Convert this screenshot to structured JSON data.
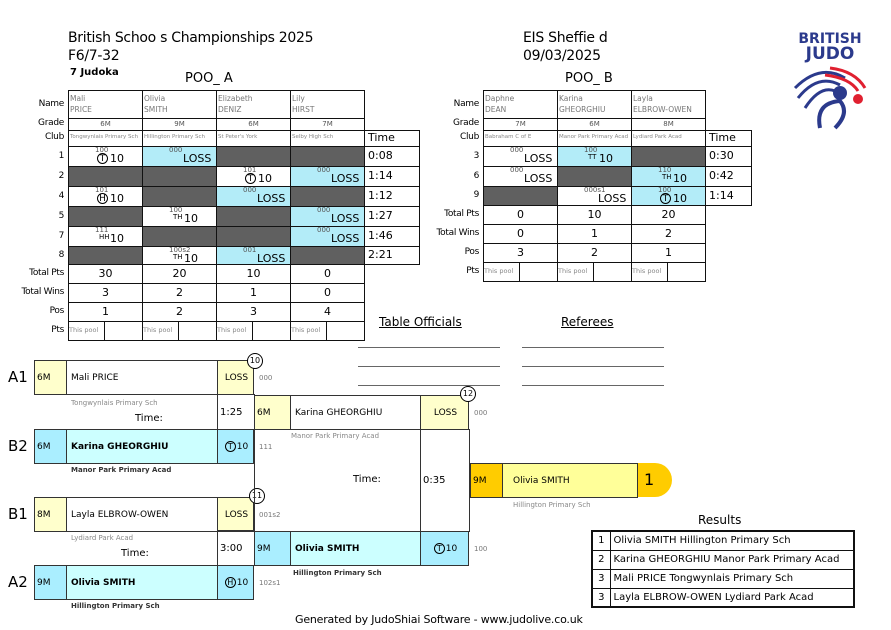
{
  "header": {
    "title": "British Schoo s Championships 2025",
    "category": "F6/7-32",
    "count": "7 Judoka",
    "venue": "EIS Sheffie d",
    "date": "09/03/2025",
    "logo_text": "BRITISH JUDO"
  },
  "row_labels": {
    "name": "Name",
    "grade": "Grade",
    "club": "Club",
    "time": "Time",
    "total_pts": "Total Pts",
    "total_wins": "Total Wins",
    "pos": "Pos",
    "pts": "Pts",
    "this_pool": "This pool"
  },
  "pool_a": {
    "title": "POO_ A",
    "players": [
      {
        "first": "Mali",
        "last": "PRICE",
        "grade": "6M",
        "club": "Tongwynlais Primary Sch",
        "total_pts": "30",
        "total_wins": "3",
        "pos": "1"
      },
      {
        "first": "Olivia",
        "last": "SMITH",
        "grade": "9M",
        "club": "Hillington Primary Sch",
        "total_pts": "20",
        "total_wins": "2",
        "pos": "2"
      },
      {
        "first": "Elizabeth",
        "last": "DENIZ",
        "grade": "6M",
        "club": "St Peter's York",
        "total_pts": "10",
        "total_wins": "1",
        "pos": "3"
      },
      {
        "first": "Lily",
        "last": "HIRST",
        "grade": "7M",
        "club": "Selby High Sch",
        "total_pts": "0",
        "total_wins": "0",
        "pos": "4"
      }
    ],
    "matches": [
      {
        "no": "1",
        "time": "0:08",
        "cells": [
          {
            "s": "w",
            "score": "100",
            "icon": "T",
            "result": "10"
          },
          {
            "s": "b",
            "score": "000",
            "result": "LOSS"
          },
          {
            "s": "d"
          },
          {
            "s": "d"
          }
        ]
      },
      {
        "no": "2",
        "time": "1:14",
        "cells": [
          {
            "s": "d"
          },
          {
            "s": "d"
          },
          {
            "s": "w",
            "score": "101",
            "icon": "T",
            "result": "10"
          },
          {
            "s": "b",
            "score": "000",
            "result": "LOSS"
          }
        ]
      },
      {
        "no": "4",
        "time": "1:12",
        "cells": [
          {
            "s": "w",
            "score": "101",
            "icon": "H",
            "result": "10"
          },
          {
            "s": "d"
          },
          {
            "s": "b",
            "score": "000",
            "result": "LOSS"
          },
          {
            "s": "d"
          }
        ]
      },
      {
        "no": "5",
        "time": "1:27",
        "cells": [
          {
            "s": "d"
          },
          {
            "s": "w",
            "score": "100",
            "icon": "TH",
            "result": "10"
          },
          {
            "s": "d"
          },
          {
            "s": "b",
            "score": "000",
            "result": "LOSS"
          }
        ]
      },
      {
        "no": "7",
        "time": "1:46",
        "cells": [
          {
            "s": "w",
            "score": "111",
            "icon": "HH",
            "result": "10"
          },
          {
            "s": "d"
          },
          {
            "s": "d"
          },
          {
            "s": "b",
            "score": "000",
            "result": "LOSS"
          }
        ]
      },
      {
        "no": "8",
        "time": "2:21",
        "cells": [
          {
            "s": "d"
          },
          {
            "s": "w",
            "score": "100s2",
            "icon": "TH",
            "result": "10"
          },
          {
            "s": "b",
            "score": "001",
            "result": "LOSS"
          },
          {
            "s": "d"
          }
        ]
      }
    ]
  },
  "pool_b": {
    "title": "POO_ B",
    "players": [
      {
        "first": "Daphne",
        "last": "DEAN",
        "grade": "7M",
        "club": "Babraham C of E",
        "total_pts": "0",
        "total_wins": "0",
        "pos": "3"
      },
      {
        "first": "Karina",
        "last": "GHEORGHIU",
        "grade": "6M",
        "club": "Manor Park Primary Acad",
        "total_pts": "10",
        "total_wins": "1",
        "pos": "2"
      },
      {
        "first": "Layla",
        "last": "ELBROW-OWEN",
        "grade": "8M",
        "club": "Lydiard Park Acad",
        "total_pts": "20",
        "total_wins": "2",
        "pos": "1"
      }
    ],
    "matches": [
      {
        "no": "3",
        "time": "0:30",
        "cells": [
          {
            "s": "w",
            "score": "000",
            "result": "LOSS"
          },
          {
            "s": "b",
            "score": "100",
            "icon": "TT",
            "result": "10"
          },
          {
            "s": "d"
          }
        ]
      },
      {
        "no": "6",
        "time": "0:42",
        "cells": [
          {
            "s": "w",
            "score": "000",
            "result": "LOSS"
          },
          {
            "s": "d"
          },
          {
            "s": "b",
            "score": "110",
            "icon": "TH",
            "result": "10"
          }
        ]
      },
      {
        "no": "9",
        "time": "1:14",
        "cells": [
          {
            "s": "d"
          },
          {
            "s": "w",
            "score": "000s1",
            "result": "LOSS"
          },
          {
            "s": "b",
            "score": "100",
            "icon": "T",
            "result": "10"
          }
        ]
      }
    ]
  },
  "officials": {
    "table": "Table Officials",
    "referees": "Referees"
  },
  "bracket": {
    "time_label": "Time:",
    "m10": {
      "no": "10",
      "time": "1:25",
      "top": {
        "seed": "A1",
        "grade": "6M",
        "name": "Mali PRICE",
        "club": "Tongwynlais Primary Sch",
        "result": "LOSS",
        "score": "000"
      },
      "bottom": {
        "seed": "B2",
        "grade": "6M",
        "name": "Karina GHEORGHIU",
        "club": "Manor Park Primary Acad",
        "icon": "T",
        "result": "10",
        "score": "111"
      }
    },
    "m11": {
      "no": "11",
      "time": "3:00",
      "top": {
        "seed": "B1",
        "grade": "8M",
        "name": "Layla ELBROW-OWEN",
        "club": "Lydiard Park Acad",
        "result": "LOSS",
        "score": "001s2"
      },
      "bottom": {
        "seed": "A2",
        "grade": "9M",
        "name": "Olivia SMITH",
        "club": "Hillington Primary Sch",
        "icon": "H",
        "result": "10",
        "score": "102s1"
      }
    },
    "m12": {
      "no": "12",
      "time": "0:35",
      "top": {
        "grade": "6M",
        "name": "Karina GHEORGHIU",
        "club": "Manor Park Primary Acad",
        "result": "LOSS",
        "score": "000"
      },
      "bottom": {
        "grade": "9M",
        "name": "Olivia SMITH",
        "club": "Hillington Primary Sch",
        "icon": "T",
        "result": "10",
        "score": "100"
      }
    },
    "winner": {
      "grade": "9M",
      "name": "Olivia SMITH",
      "club": "Hillington Primary Sch",
      "place": "1"
    }
  },
  "results": {
    "title": "Results",
    "rows": [
      {
        "place": "1",
        "text": "Olivia SMITH Hillington Primary Sch"
      },
      {
        "place": "2",
        "text": "Karina GHEORGHIU Manor Park Primary Acad"
      },
      {
        "place": "3",
        "text": "Mali PRICE Tongwynlais Primary Sch"
      },
      {
        "place": "3",
        "text": "Layla ELBROW-OWEN Lydiard Park Acad"
      }
    ]
  },
  "footer": "Generated by JudoShiai Software - www.judolive.co.uk",
  "colors": {
    "loser_bg": "#ffffcc",
    "winner_bg": "#ccffff",
    "grade_winner": "#aaeeff",
    "final_gold": "#ffcc00",
    "final_name": "#ffff99",
    "dark_cell": "#606060",
    "logo_blue": "#2b3a8c",
    "logo_red": "#e02030"
  }
}
